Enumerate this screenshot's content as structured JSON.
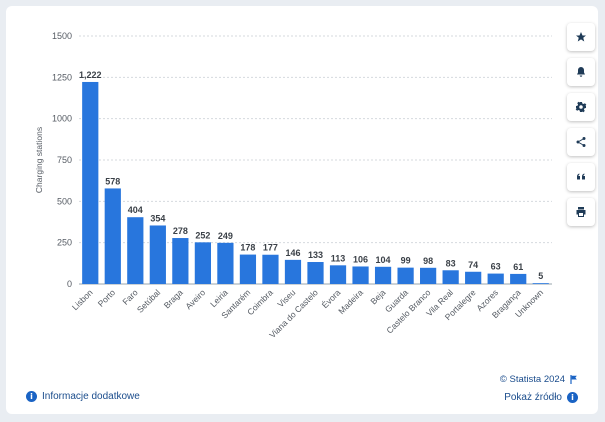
{
  "chart_data": {
    "type": "bar",
    "ylabel": "Charging stations",
    "xlabel": "",
    "ylim": [
      0,
      1500
    ],
    "yticks": [
      0,
      250,
      500,
      750,
      1000,
      1250,
      1500
    ],
    "ytick_labels": [
      "0",
      "250",
      "500",
      "750",
      "1000",
      "1250",
      "1500"
    ],
    "grid": true,
    "bar_color": "#2876dd",
    "categories": [
      "Lisbon",
      "Porto",
      "Faro",
      "Setúbal",
      "Braga",
      "Aveiro",
      "Leiria",
      "Santarém",
      "Coimbra",
      "Viseu",
      "Viana do Castelo",
      "Évora",
      "Madeira",
      "Beja",
      "Guarda",
      "Castelo Branco",
      "Vila Real",
      "Portalegre",
      "Azores",
      "Bragança",
      "Unknown"
    ],
    "values": [
      1222,
      578,
      404,
      354,
      278,
      252,
      249,
      178,
      177,
      146,
      133,
      113,
      106,
      104,
      99,
      98,
      83,
      74,
      63,
      61,
      5
    ],
    "value_labels": [
      "1,222",
      "578",
      "404",
      "354",
      "278",
      "252",
      "249",
      "178",
      "177",
      "146",
      "133",
      "113",
      "106",
      "104",
      "99",
      "98",
      "83",
      "74",
      "63",
      "61",
      "5"
    ]
  },
  "sidebar": {
    "buttons": [
      {
        "name": "favorite-button",
        "icon": "star-icon"
      },
      {
        "name": "notification-button",
        "icon": "bell-icon"
      },
      {
        "name": "settings-button",
        "icon": "gear-icon"
      },
      {
        "name": "share-button",
        "icon": "share-icon"
      },
      {
        "name": "cite-button",
        "icon": "quote-icon"
      },
      {
        "name": "print-button",
        "icon": "printer-icon"
      }
    ]
  },
  "footer": {
    "additional_info": "Informacje dodatkowe",
    "credit": "© Statista 2024",
    "show_source": "Pokaż źródło"
  },
  "colors": {
    "accent": "#1a63c4",
    "link": "#1a4c8c"
  }
}
